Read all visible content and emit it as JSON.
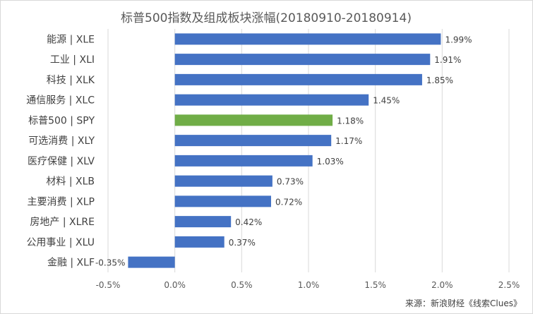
{
  "chart_data": {
    "type": "bar",
    "orientation": "horizontal",
    "title": "标普500指数及组成板块涨幅(20180910-20180914)",
    "categories": [
      "能源 | XLE",
      "工业 | XLI",
      "科技 | XLK",
      "通信服务 | XLC",
      "标普500 | SPY",
      "可选消费 | XLY",
      "医疗保健 | XLV",
      "材料 | XLB",
      "主要消费 | XLP",
      "房地产 | XLRE",
      "公用事业 | XLU",
      "金融 | XLF"
    ],
    "values": [
      1.99,
      1.91,
      1.85,
      1.45,
      1.18,
      1.17,
      1.03,
      0.73,
      0.72,
      0.42,
      0.37,
      -0.35
    ],
    "data_labels": [
      "1.99%",
      "1.91%",
      "1.85%",
      "1.45%",
      "1.18%",
      "1.17%",
      "1.03%",
      "0.73%",
      "0.72%",
      "0.42%",
      "0.37%",
      "-0.35%"
    ],
    "x_ticks": [
      -0.5,
      0,
      0.5,
      1.0,
      1.5,
      2.0,
      2.5
    ],
    "x_tick_labels": [
      "-0.5%",
      "0.0%",
      "0.5%",
      "1.0%",
      "1.5%",
      "2.0%",
      "2.5%"
    ],
    "xlim": [
      -0.5,
      2.5
    ],
    "grid": true,
    "colors": {
      "default": "#4472c4",
      "highlight": "#70ad47"
    },
    "highlight_category": "标普500 | SPY",
    "xlabel": "",
    "ylabel": ""
  },
  "source_note": "来源：新浪财经《线索Clues》"
}
